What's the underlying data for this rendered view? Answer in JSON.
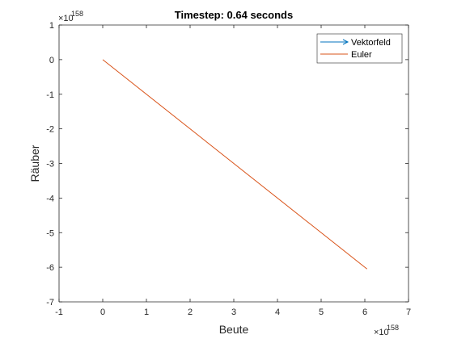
{
  "chart_data": {
    "type": "line",
    "title": "Timestep: 0.64 seconds",
    "xlabel": "Beute",
    "ylabel": "Räuber",
    "x_exponent_label": "×10",
    "x_exponent": "158",
    "y_exponent_label": "×10",
    "y_exponent": "158",
    "xlim": [
      -1,
      7
    ],
    "ylim": [
      -7,
      1
    ],
    "xticks": [
      -1,
      0,
      1,
      2,
      3,
      4,
      5,
      6,
      7
    ],
    "yticks": [
      -7,
      -6,
      -5,
      -4,
      -3,
      -2,
      -1,
      0,
      1
    ],
    "grid": false,
    "legend_location": "top-right",
    "series": [
      {
        "name": "Vektorfeld",
        "kind": "quiver",
        "color": "#0072BD",
        "x": [],
        "y": []
      },
      {
        "name": "Euler",
        "kind": "line",
        "color": "#D95319",
        "x": [
          0,
          6.05
        ],
        "y": [
          0,
          -6.05
        ]
      }
    ]
  }
}
